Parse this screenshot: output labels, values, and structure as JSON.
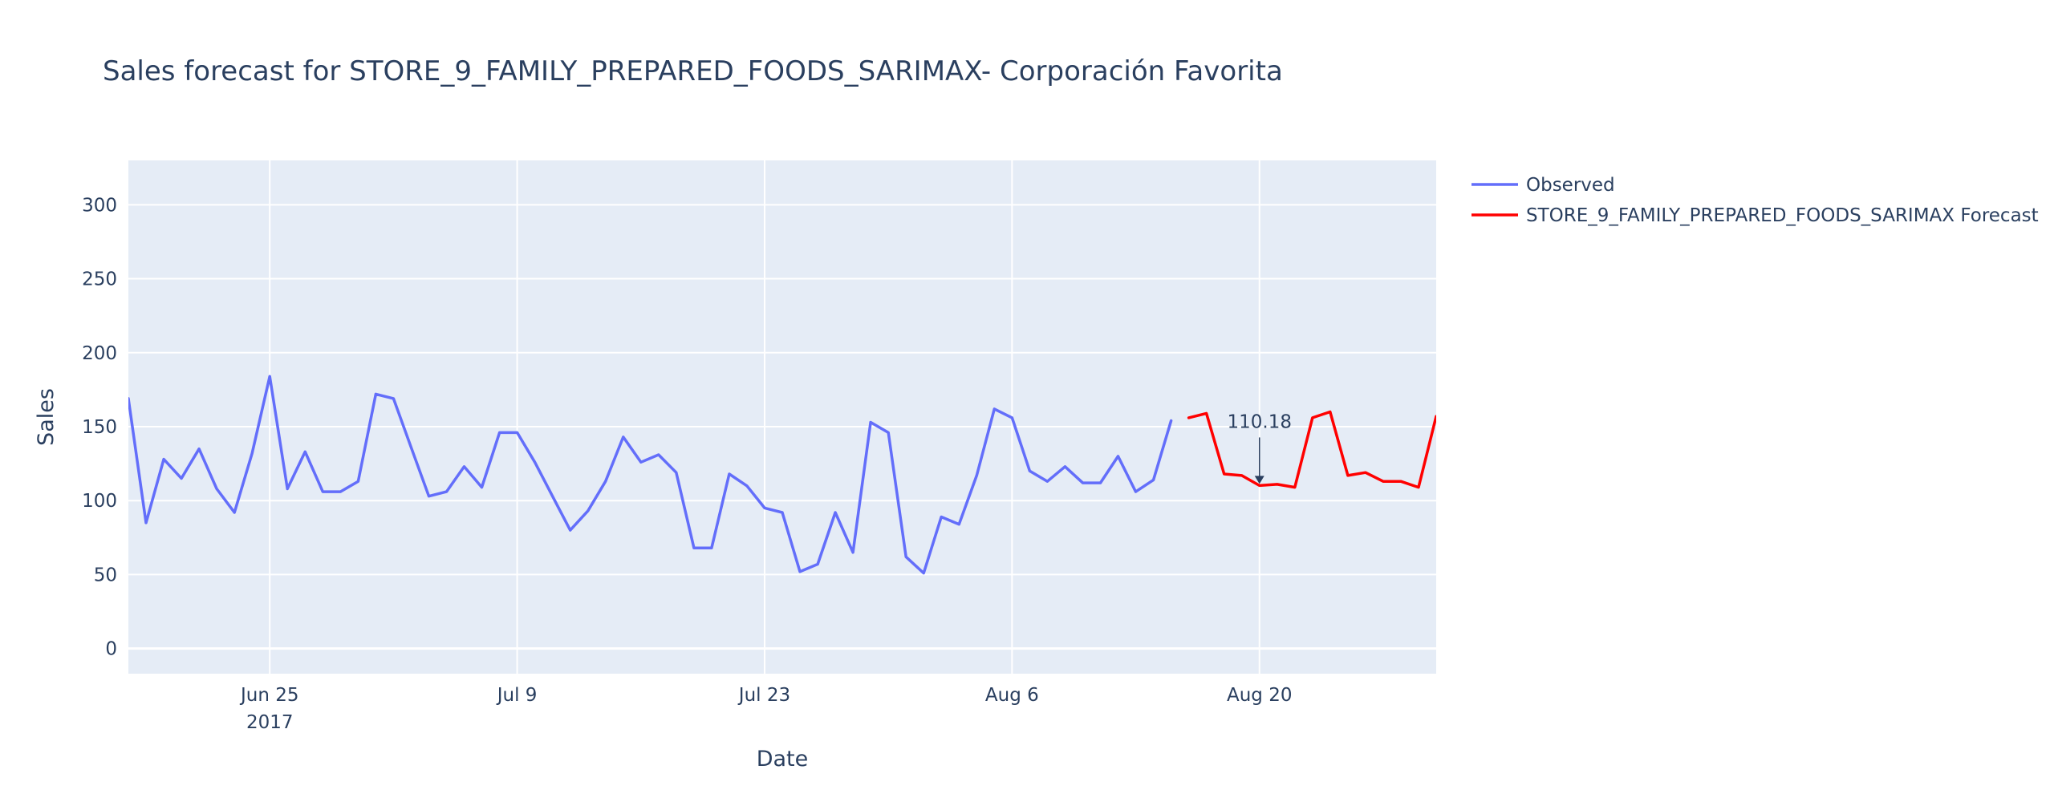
{
  "chart_data": {
    "type": "line",
    "title": "Sales forecast for STORE_9_FAMILY_PREPARED_FOODS_SARIMAX- Corporación Favorita",
    "xlabel": "Date",
    "ylabel": "Sales",
    "x_range": [
      "2017-06-17",
      "2017-08-30"
    ],
    "ylim": [
      -17,
      330
    ],
    "x_ticks": [
      {
        "date": "2017-06-25",
        "label": "Jun 25",
        "sublabel": "2017"
      },
      {
        "date": "2017-07-09",
        "label": "Jul 9"
      },
      {
        "date": "2017-07-23",
        "label": "Jul 23"
      },
      {
        "date": "2017-08-06",
        "label": "Aug 6"
      },
      {
        "date": "2017-08-20",
        "label": "Aug 20"
      }
    ],
    "y_ticks": [
      0,
      50,
      100,
      150,
      200,
      250,
      300
    ],
    "grid": true,
    "legend_position": "top-right outside",
    "series": [
      {
        "name": "Observed",
        "color": "#636efa",
        "x": [
          "2017-06-17",
          "2017-06-18",
          "2017-06-19",
          "2017-06-20",
          "2017-06-21",
          "2017-06-22",
          "2017-06-23",
          "2017-06-24",
          "2017-06-25",
          "2017-06-26",
          "2017-06-27",
          "2017-06-28",
          "2017-06-29",
          "2017-06-30",
          "2017-07-01",
          "2017-07-02",
          "2017-07-03",
          "2017-07-04",
          "2017-07-05",
          "2017-07-06",
          "2017-07-07",
          "2017-07-08",
          "2017-07-09",
          "2017-07-10",
          "2017-07-11",
          "2017-07-12",
          "2017-07-13",
          "2017-07-14",
          "2017-07-15",
          "2017-07-16",
          "2017-07-17",
          "2017-07-18",
          "2017-07-19",
          "2017-07-20",
          "2017-07-21",
          "2017-07-22",
          "2017-07-23",
          "2017-07-24",
          "2017-07-25",
          "2017-07-26",
          "2017-07-27",
          "2017-07-28",
          "2017-07-29",
          "2017-07-30",
          "2017-07-31",
          "2017-08-01",
          "2017-08-02",
          "2017-08-03",
          "2017-08-04",
          "2017-08-05",
          "2017-08-06",
          "2017-08-07",
          "2017-08-08",
          "2017-08-09",
          "2017-08-10",
          "2017-08-11",
          "2017-08-12",
          "2017-08-13",
          "2017-08-14",
          "2017-08-15"
        ],
        "y": [
          169,
          85,
          128,
          115,
          135,
          108,
          92,
          132,
          184,
          108,
          133,
          106,
          106,
          113,
          172,
          169,
          136,
          103,
          106,
          123,
          109,
          146,
          146,
          126,
          103,
          80,
          93,
          113,
          143,
          126,
          131,
          119,
          68,
          68,
          118,
          110,
          95,
          92,
          52,
          57,
          92,
          65,
          153,
          146,
          62,
          51,
          89,
          84,
          117,
          162,
          156,
          120,
          113,
          123,
          112,
          112,
          130,
          106,
          114,
          154
        ]
      },
      {
        "name": "STORE_9_FAMILY_PREPARED_FOODS_SARIMAX Forecast",
        "color": "#ff0000",
        "x": [
          "2017-08-16",
          "2017-08-17",
          "2017-08-18",
          "2017-08-19",
          "2017-08-20",
          "2017-08-21",
          "2017-08-22",
          "2017-08-23",
          "2017-08-24",
          "2017-08-25",
          "2017-08-26",
          "2017-08-27",
          "2017-08-28",
          "2017-08-29",
          "2017-08-30"
        ],
        "y": [
          156,
          159,
          118,
          117,
          110.18,
          111,
          109,
          156,
          160,
          117,
          119,
          113,
          113,
          109,
          157
        ]
      }
    ],
    "annotations": [
      {
        "text": "110.18",
        "x": "2017-08-20",
        "y": 110.18
      }
    ]
  }
}
